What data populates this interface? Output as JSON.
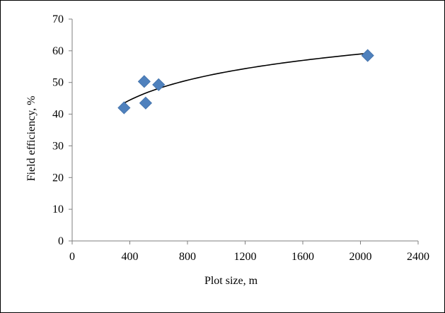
{
  "chart_data": {
    "type": "scatter",
    "title": "",
    "xlabel": "Plot size,  m",
    "ylabel": "Field  efficiency, %",
    "xlim": [
      0,
      2400
    ],
    "ylim": [
      0,
      70
    ],
    "xticks": [
      0,
      400,
      800,
      1200,
      1600,
      2000,
      2400
    ],
    "yticks": [
      0,
      10,
      20,
      30,
      40,
      50,
      60,
      70
    ],
    "grid": false,
    "legend": "none",
    "series": [
      {
        "marker": "diamond",
        "color": "#4f81bd",
        "x": [
          360,
          500,
          510,
          600,
          2050
        ],
        "y": [
          42.0,
          50.3,
          43.5,
          49.3,
          58.5
        ]
      }
    ],
    "trendline": {
      "type": "logarithmic",
      "color": "#000000",
      "x_from": 360,
      "x_to": 2050,
      "y_from": 43.5,
      "y_to": 59.2
    }
  }
}
